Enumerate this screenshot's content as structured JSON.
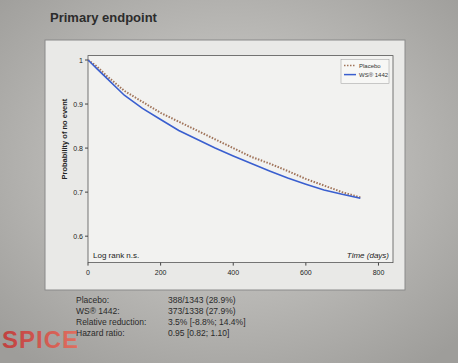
{
  "chart_data": {
    "type": "line",
    "title": "Primary endpoint",
    "y_label": "Probability of no event",
    "x_label": "Time (days)",
    "annotations": [
      "Log rank n.s."
    ],
    "stats": [
      {
        "label": "Placebo:",
        "value": "388/1343 (28.9%)"
      },
      {
        "label": "WS® 1442:",
        "value": "373/1338 (27.9%)"
      },
      {
        "label": "Relative reduction:",
        "value": "3.5% [-8.8%; 14.4%]"
      },
      {
        "label": "Hazard ratio:",
        "value": "0.95 [0.82; 1.10]"
      }
    ],
    "logo": "SPICE",
    "x": [
      0,
      25,
      50,
      100,
      150,
      200,
      250,
      300,
      350,
      400,
      450,
      500,
      550,
      600,
      650,
      700,
      750
    ],
    "series": [
      {
        "name": "Placebo",
        "color": "#a0745a",
        "line_style": "dotted",
        "values": [
          1.0,
          0.985,
          0.965,
          0.93,
          0.905,
          0.88,
          0.86,
          0.84,
          0.82,
          0.8,
          0.78,
          0.765,
          0.748,
          0.73,
          0.715,
          0.7,
          0.688
        ]
      },
      {
        "name": "WS® 1442",
        "color": "#3a5fcf",
        "line_style": "solid",
        "values": [
          1.0,
          0.98,
          0.96,
          0.92,
          0.89,
          0.865,
          0.84,
          0.82,
          0.8,
          0.782,
          0.765,
          0.748,
          0.732,
          0.718,
          0.705,
          0.695,
          0.686
        ]
      }
    ],
    "xlim": [
      0,
      840
    ],
    "ylim": [
      0.54,
      1.01
    ],
    "xticks": [
      0,
      200,
      400,
      600,
      800
    ],
    "yticks": [
      0.6,
      0.7,
      0.8,
      0.9,
      1
    ],
    "legend": "upper right",
    "grid": false
  }
}
